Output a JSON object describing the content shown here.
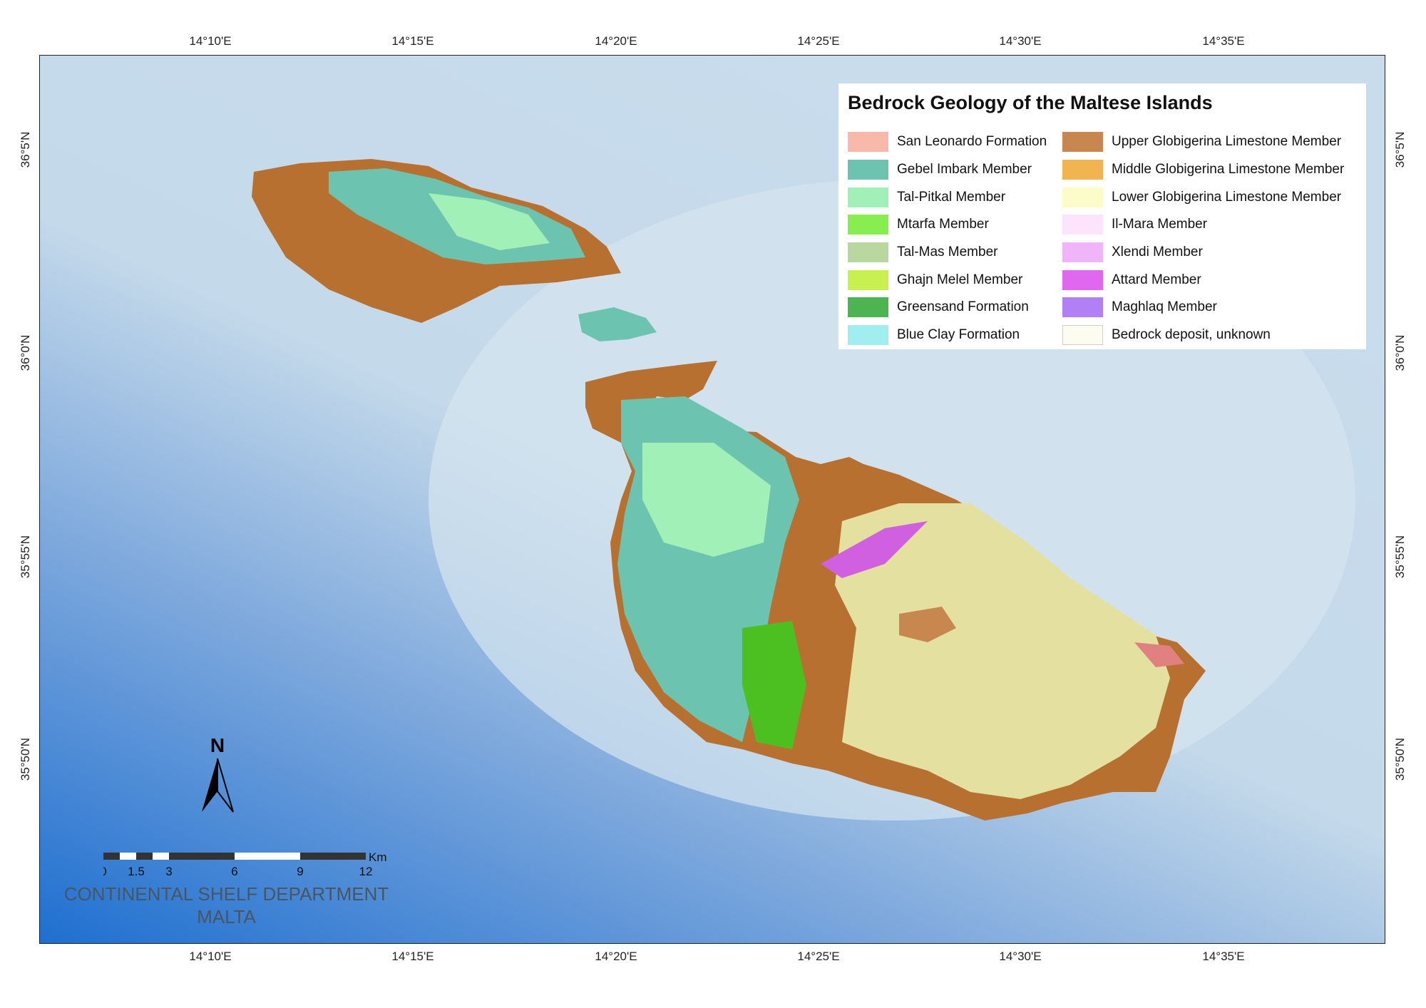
{
  "legend": {
    "title": "Bedrock Geology of the Maltese Islands",
    "items": [
      {
        "label": "San Leonardo Formation",
        "color": "#f8b8aa"
      },
      {
        "label": "Gebel Imbark Member",
        "color": "#6cc4b0"
      },
      {
        "label": "Tal-Pitkal Member",
        "color": "#a0f0b8"
      },
      {
        "label": "Mtarfa Member",
        "color": "#88ee50"
      },
      {
        "label": "Tal-Mas Member",
        "color": "#b8d8a0"
      },
      {
        "label": "Ghajn Melel Member",
        "color": "#c8f050"
      },
      {
        "label": "Greensand Formation",
        "color": "#4cb450"
      },
      {
        "label": "Blue Clay Formation",
        "color": "#a0eef0"
      },
      {
        "label": "Upper Globigerina Limestone Member",
        "color": "#c8874e"
      },
      {
        "label": "Middle Globigerina Limestone Member",
        "color": "#f0b450"
      },
      {
        "label": "Lower Globigerina Limestone Member",
        "color": "#fcfcc8"
      },
      {
        "label": "Il-Mara Member",
        "color": "#fce4fc"
      },
      {
        "label": "Xlendi Member",
        "color": "#f0b4f8"
      },
      {
        "label": "Attard Member",
        "color": "#e068f0"
      },
      {
        "label": "Maghlaq Member",
        "color": "#b080f4"
      },
      {
        "label": "Bedrock deposit, unknown",
        "color": "#fcfcf0"
      }
    ]
  },
  "axes": {
    "longitudes": [
      "14°10'E",
      "14°15'E",
      "14°20'E",
      "14°25'E",
      "14°30'E",
      "14°35'E"
    ],
    "latitudes": [
      "36°5'N",
      "36°0'N",
      "35°55'N",
      "35°50'N"
    ]
  },
  "north_arrow": {
    "label": "N"
  },
  "scale_bar": {
    "unit": "Km",
    "ticks": [
      "0",
      "1.5",
      "3",
      "6",
      "9",
      "12"
    ]
  },
  "credit": {
    "line1": "CONTINENTAL SHELF DEPARTMENT",
    "line2": "MALTA"
  }
}
